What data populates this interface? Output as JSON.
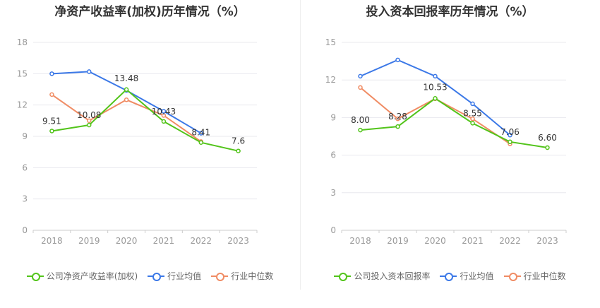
{
  "chart_data": [
    {
      "type": "line",
      "title": "净资产收益率(加权)历年情况（%）",
      "categories": [
        "2018",
        "2019",
        "2020",
        "2021",
        "2022",
        "2023"
      ],
      "ylim": [
        0,
        18
      ],
      "yticks": [
        0,
        3,
        6,
        9,
        12,
        15,
        18
      ],
      "grid": true,
      "legend_position": "bottom",
      "series": [
        {
          "name": "公司净资产收益率(加权)",
          "color": "#52c41a",
          "values": [
            9.51,
            10.08,
            13.48,
            10.43,
            8.41,
            7.6
          ],
          "labels": [
            "9.51",
            "10.08",
            "13.48",
            "10.43",
            "8.41",
            "7.6"
          ]
        },
        {
          "name": "行业均值",
          "color": "#3b78e7",
          "values": [
            15.0,
            15.2,
            13.4,
            11.4,
            9.3,
            null
          ]
        },
        {
          "name": "行业中位数",
          "color": "#f08c64",
          "values": [
            13.0,
            10.5,
            12.5,
            11.0,
            8.5,
            null
          ]
        }
      ]
    },
    {
      "type": "line",
      "title": "投入资本回报率历年情况（%）",
      "categories": [
        "2018",
        "2019",
        "2020",
        "2021",
        "2022",
        "2023"
      ],
      "ylim": [
        0,
        15
      ],
      "yticks": [
        0,
        3,
        6,
        9,
        12,
        15
      ],
      "grid": true,
      "legend_position": "bottom",
      "series": [
        {
          "name": "公司投入资本回报率",
          "color": "#52c41a",
          "values": [
            8.0,
            8.28,
            10.53,
            8.55,
            7.06,
            6.6
          ],
          "labels": [
            "8.00",
            "8.28",
            "10.53",
            "8.55",
            "7.06",
            "6.60"
          ]
        },
        {
          "name": "行业均值",
          "color": "#3b78e7",
          "values": [
            12.3,
            13.6,
            12.3,
            10.1,
            7.6,
            null
          ]
        },
        {
          "name": "行业中位数",
          "color": "#f08c64",
          "values": [
            11.4,
            8.9,
            10.5,
            8.9,
            6.9,
            null
          ]
        }
      ]
    }
  ]
}
